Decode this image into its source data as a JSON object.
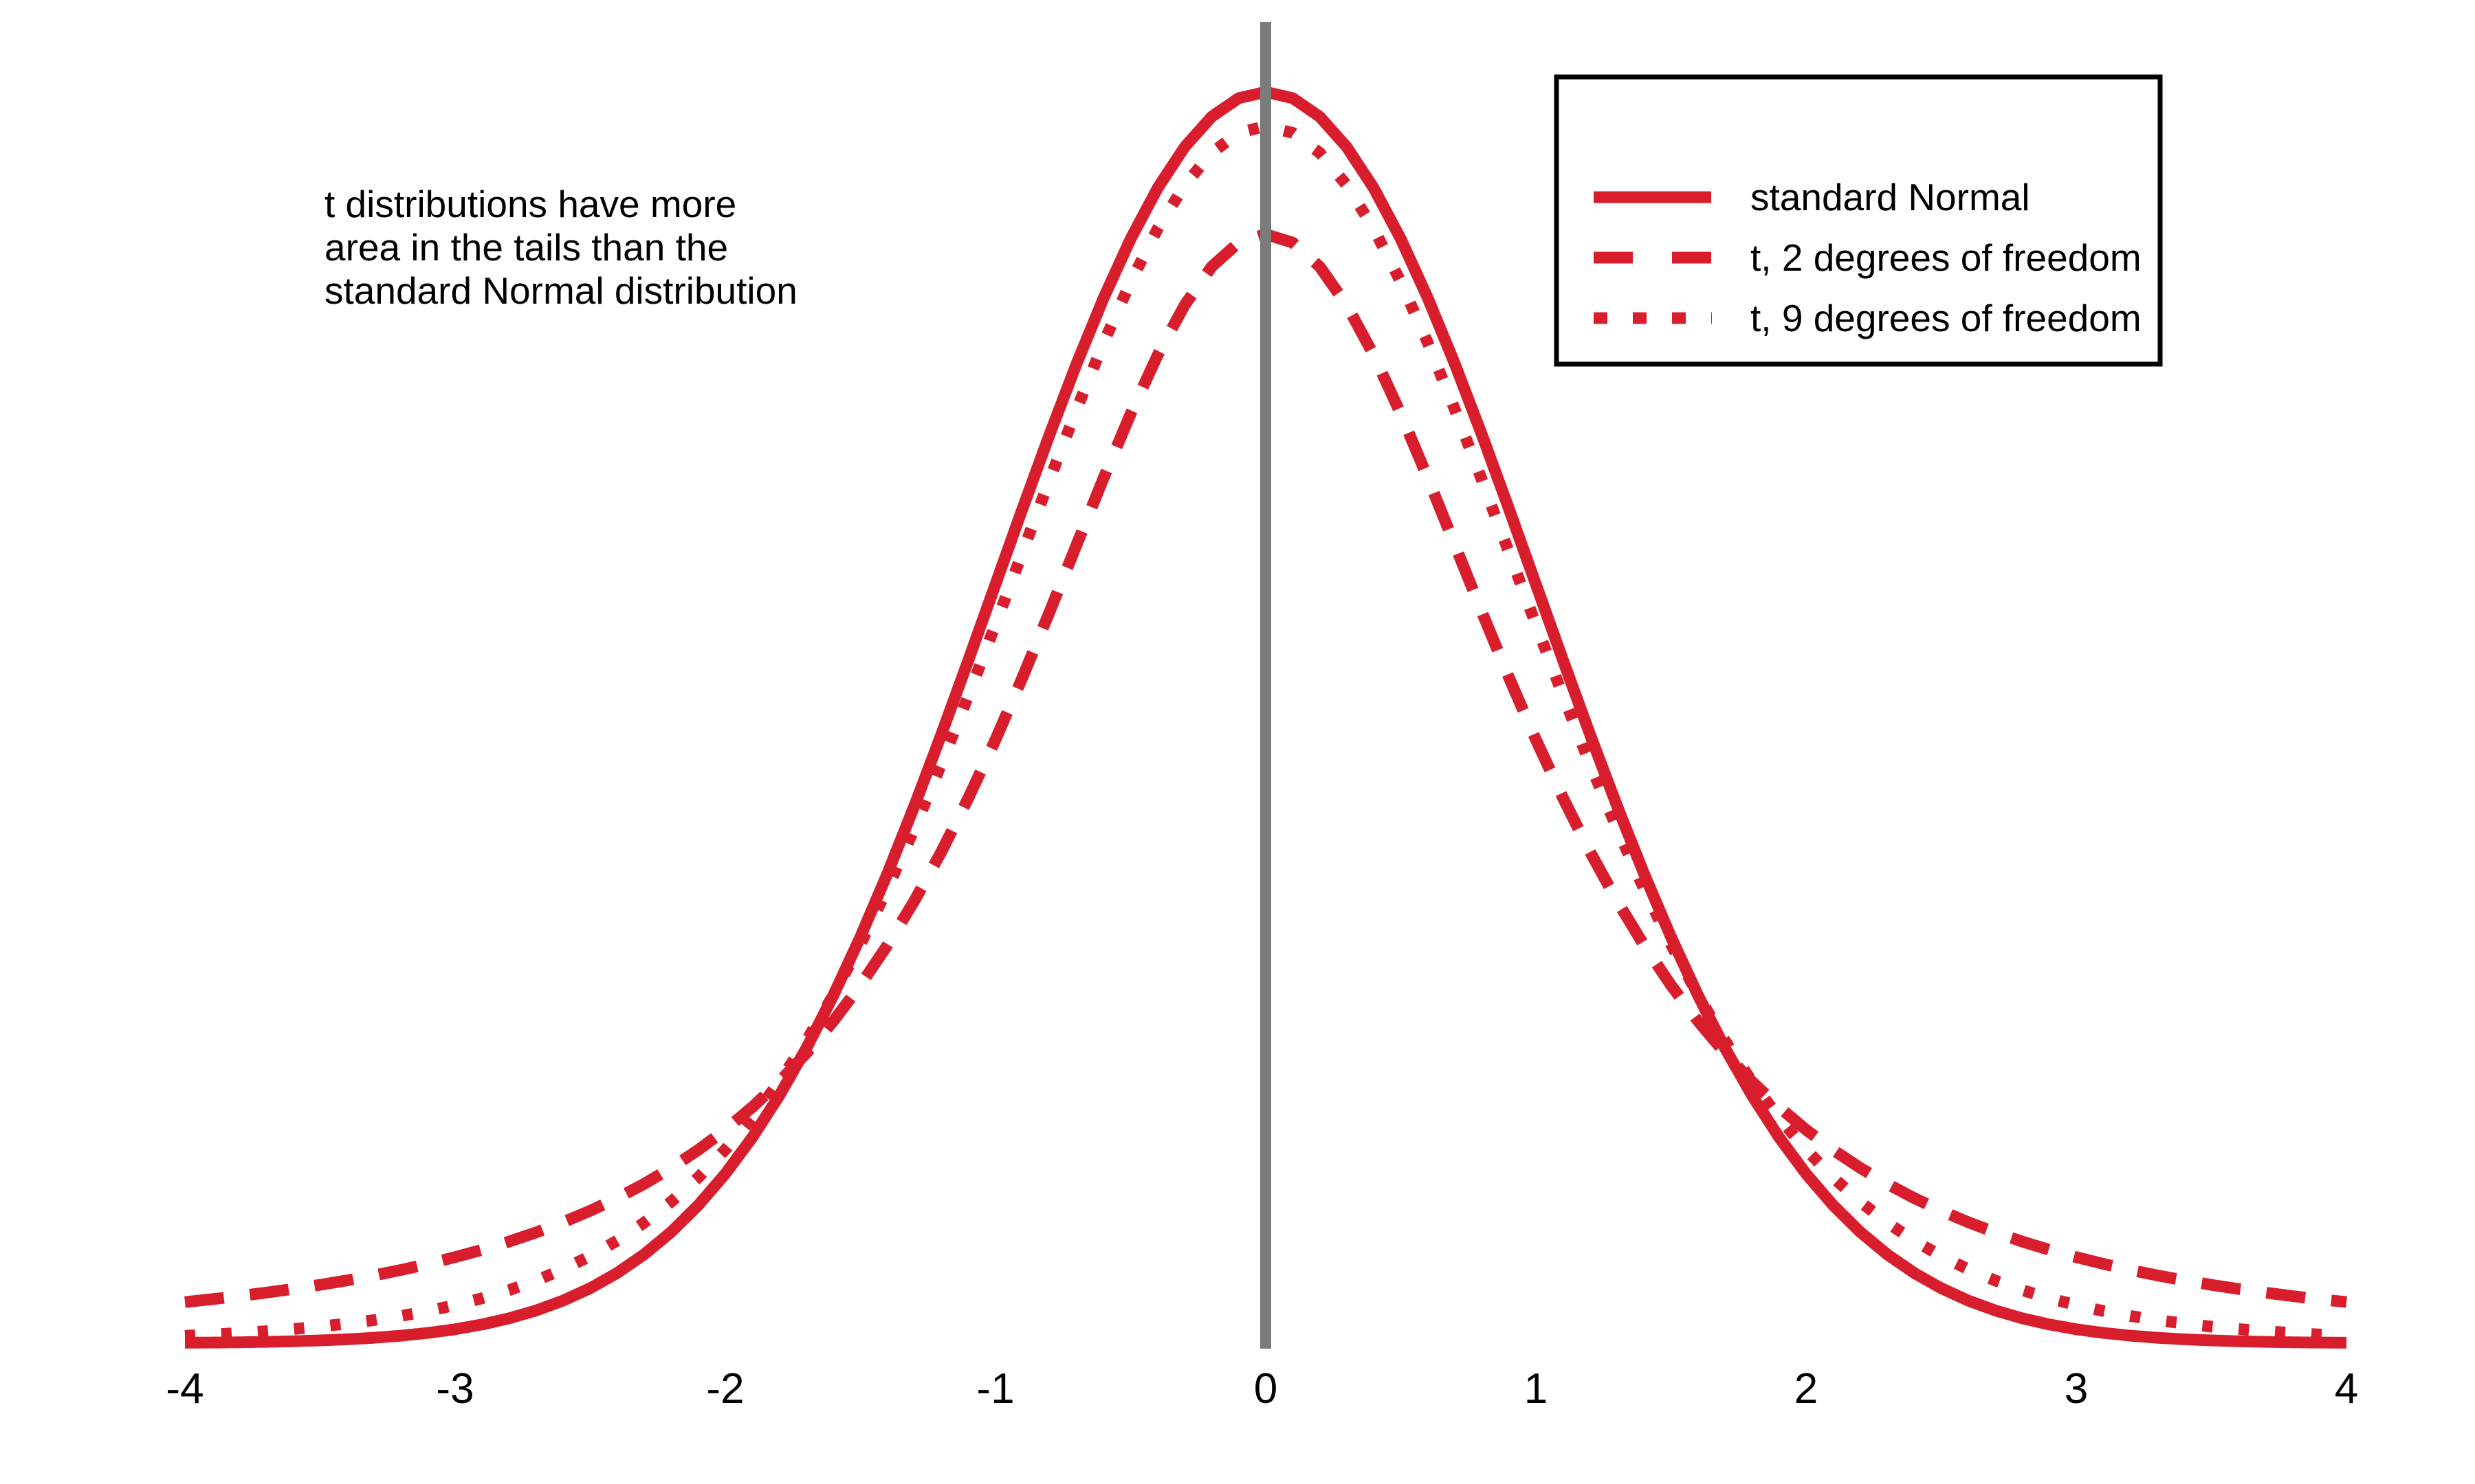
{
  "chart": {
    "annotation": {
      "lines": [
        "t distributions have more",
        "area in the tails than the",
        "standard Normal distribution"
      ]
    },
    "legend": {
      "items": [
        {
          "label": "standard Normal",
          "style": "solid"
        },
        {
          "label": "t, 2 degrees of freedom",
          "style": "dashed"
        },
        {
          "label": "t, 9 degrees of freedom",
          "style": "dotted"
        }
      ]
    },
    "colors": {
      "curve": "#d81e2c",
      "zero_line": "#7b7b7b",
      "text": "#000000",
      "legend_border": "#000000",
      "background": "#ffffff"
    }
  },
  "chart_data": {
    "type": "line",
    "title": "",
    "xlabel": "",
    "ylabel": "",
    "grid": false,
    "legend_position": "top-right",
    "xlim": [
      -4,
      4
    ],
    "ylim": [
      0,
      0.41
    ],
    "x_ticks": [
      -4,
      -3,
      -2,
      -1,
      0,
      1,
      2,
      3,
      4
    ],
    "vline_x": 0,
    "x_start": -4,
    "x_step": 0.1,
    "series": [
      {
        "name": "t, 9 degrees of freedom",
        "dash": "dotted",
        "values": [
          0.00235,
          0.00276,
          0.00324,
          0.00381,
          0.00449,
          0.00529,
          0.00624,
          0.00736,
          0.00868,
          0.01026,
          0.01213,
          0.01433,
          0.01692,
          0.01998,
          0.02357,
          0.02778,
          0.03271,
          0.03845,
          0.04512,
          0.05284,
          0.06172,
          0.07187,
          0.08341,
          0.09642,
          0.111,
          0.12716,
          0.14488,
          0.16413,
          0.18475,
          0.20652,
          0.22913,
          0.2522,
          0.27524,
          0.29767,
          0.31894,
          0.33836,
          0.35531,
          0.36921,
          0.37953,
          0.38589,
          0.38804,
          0.38589,
          0.37953,
          0.36921,
          0.35531,
          0.33836,
          0.31894,
          0.29767,
          0.27524,
          0.2522,
          0.22913,
          0.20652,
          0.18475,
          0.16413,
          0.14488,
          0.12716,
          0.111,
          0.09642,
          0.08341,
          0.07187,
          0.06172,
          0.05284,
          0.04512,
          0.03845,
          0.03271,
          0.02778,
          0.02357,
          0.01998,
          0.01692,
          0.01433,
          0.01213,
          0.01026,
          0.00868,
          0.00736,
          0.00624,
          0.00529,
          0.00449,
          0.00381,
          0.00324,
          0.00276,
          0.00235
        ]
      },
      {
        "name": "t, 2 degrees of freedom",
        "dash": "dashed",
        "values": [
          0.0131,
          0.01401,
          0.01501,
          0.0161,
          0.01729,
          0.01859,
          0.02003,
          0.02161,
          0.02336,
          0.02528,
          0.02742,
          0.02978,
          0.0324,
          0.03532,
          0.03858,
          0.04221,
          0.04627,
          0.05081,
          0.0559,
          0.06163,
          0.06804,
          0.07526,
          0.08337,
          0.09248,
          0.10269,
          0.11414,
          0.1269,
          0.14108,
          0.15673,
          0.17388,
          0.19245,
          0.2123,
          0.23313,
          0.25452,
          0.27583,
          0.2963,
          0.31501,
          0.33097,
          0.34321,
          0.35092,
          0.35355,
          0.35092,
          0.34321,
          0.33097,
          0.31501,
          0.2963,
          0.27583,
          0.25452,
          0.23313,
          0.2123,
          0.19245,
          0.17388,
          0.15673,
          0.14108,
          0.1269,
          0.11414,
          0.10269,
          0.09248,
          0.08337,
          0.07526,
          0.06804,
          0.06163,
          0.0559,
          0.05081,
          0.04627,
          0.04221,
          0.03858,
          0.03532,
          0.0324,
          0.02978,
          0.02742,
          0.02528,
          0.02336,
          0.02161,
          0.02003,
          0.01859,
          0.01729,
          0.0161,
          0.01501,
          0.01401,
          0.0131
        ]
      },
      {
        "name": "standard Normal",
        "dash": "solid",
        "values": [
          0.00013,
          0.0002,
          0.00029,
          0.00042,
          0.00061,
          0.00087,
          0.00123,
          0.00172,
          0.00238,
          0.00327,
          0.00443,
          0.00595,
          0.00792,
          0.01042,
          0.01358,
          0.01753,
          0.02239,
          0.02833,
          0.03547,
          0.04398,
          0.05399,
          0.06562,
          0.07895,
          0.09405,
          0.11092,
          0.12952,
          0.14973,
          0.17137,
          0.19419,
          0.21785,
          0.24197,
          0.26609,
          0.28969,
          0.31225,
          0.33322,
          0.35207,
          0.36827,
          0.38139,
          0.39104,
          0.39695,
          0.39894,
          0.39695,
          0.39104,
          0.38139,
          0.36827,
          0.35207,
          0.33322,
          0.31225,
          0.28969,
          0.26609,
          0.24197,
          0.21785,
          0.19419,
          0.17137,
          0.14973,
          0.12952,
          0.11092,
          0.09405,
          0.07895,
          0.06562,
          0.05399,
          0.04398,
          0.03547,
          0.02833,
          0.02239,
          0.01753,
          0.01358,
          0.01042,
          0.00792,
          0.00595,
          0.00443,
          0.00327,
          0.00238,
          0.00172,
          0.00123,
          0.00087,
          0.00061,
          0.00042,
          0.00029,
          0.0002,
          0.00013
        ]
      }
    ]
  }
}
